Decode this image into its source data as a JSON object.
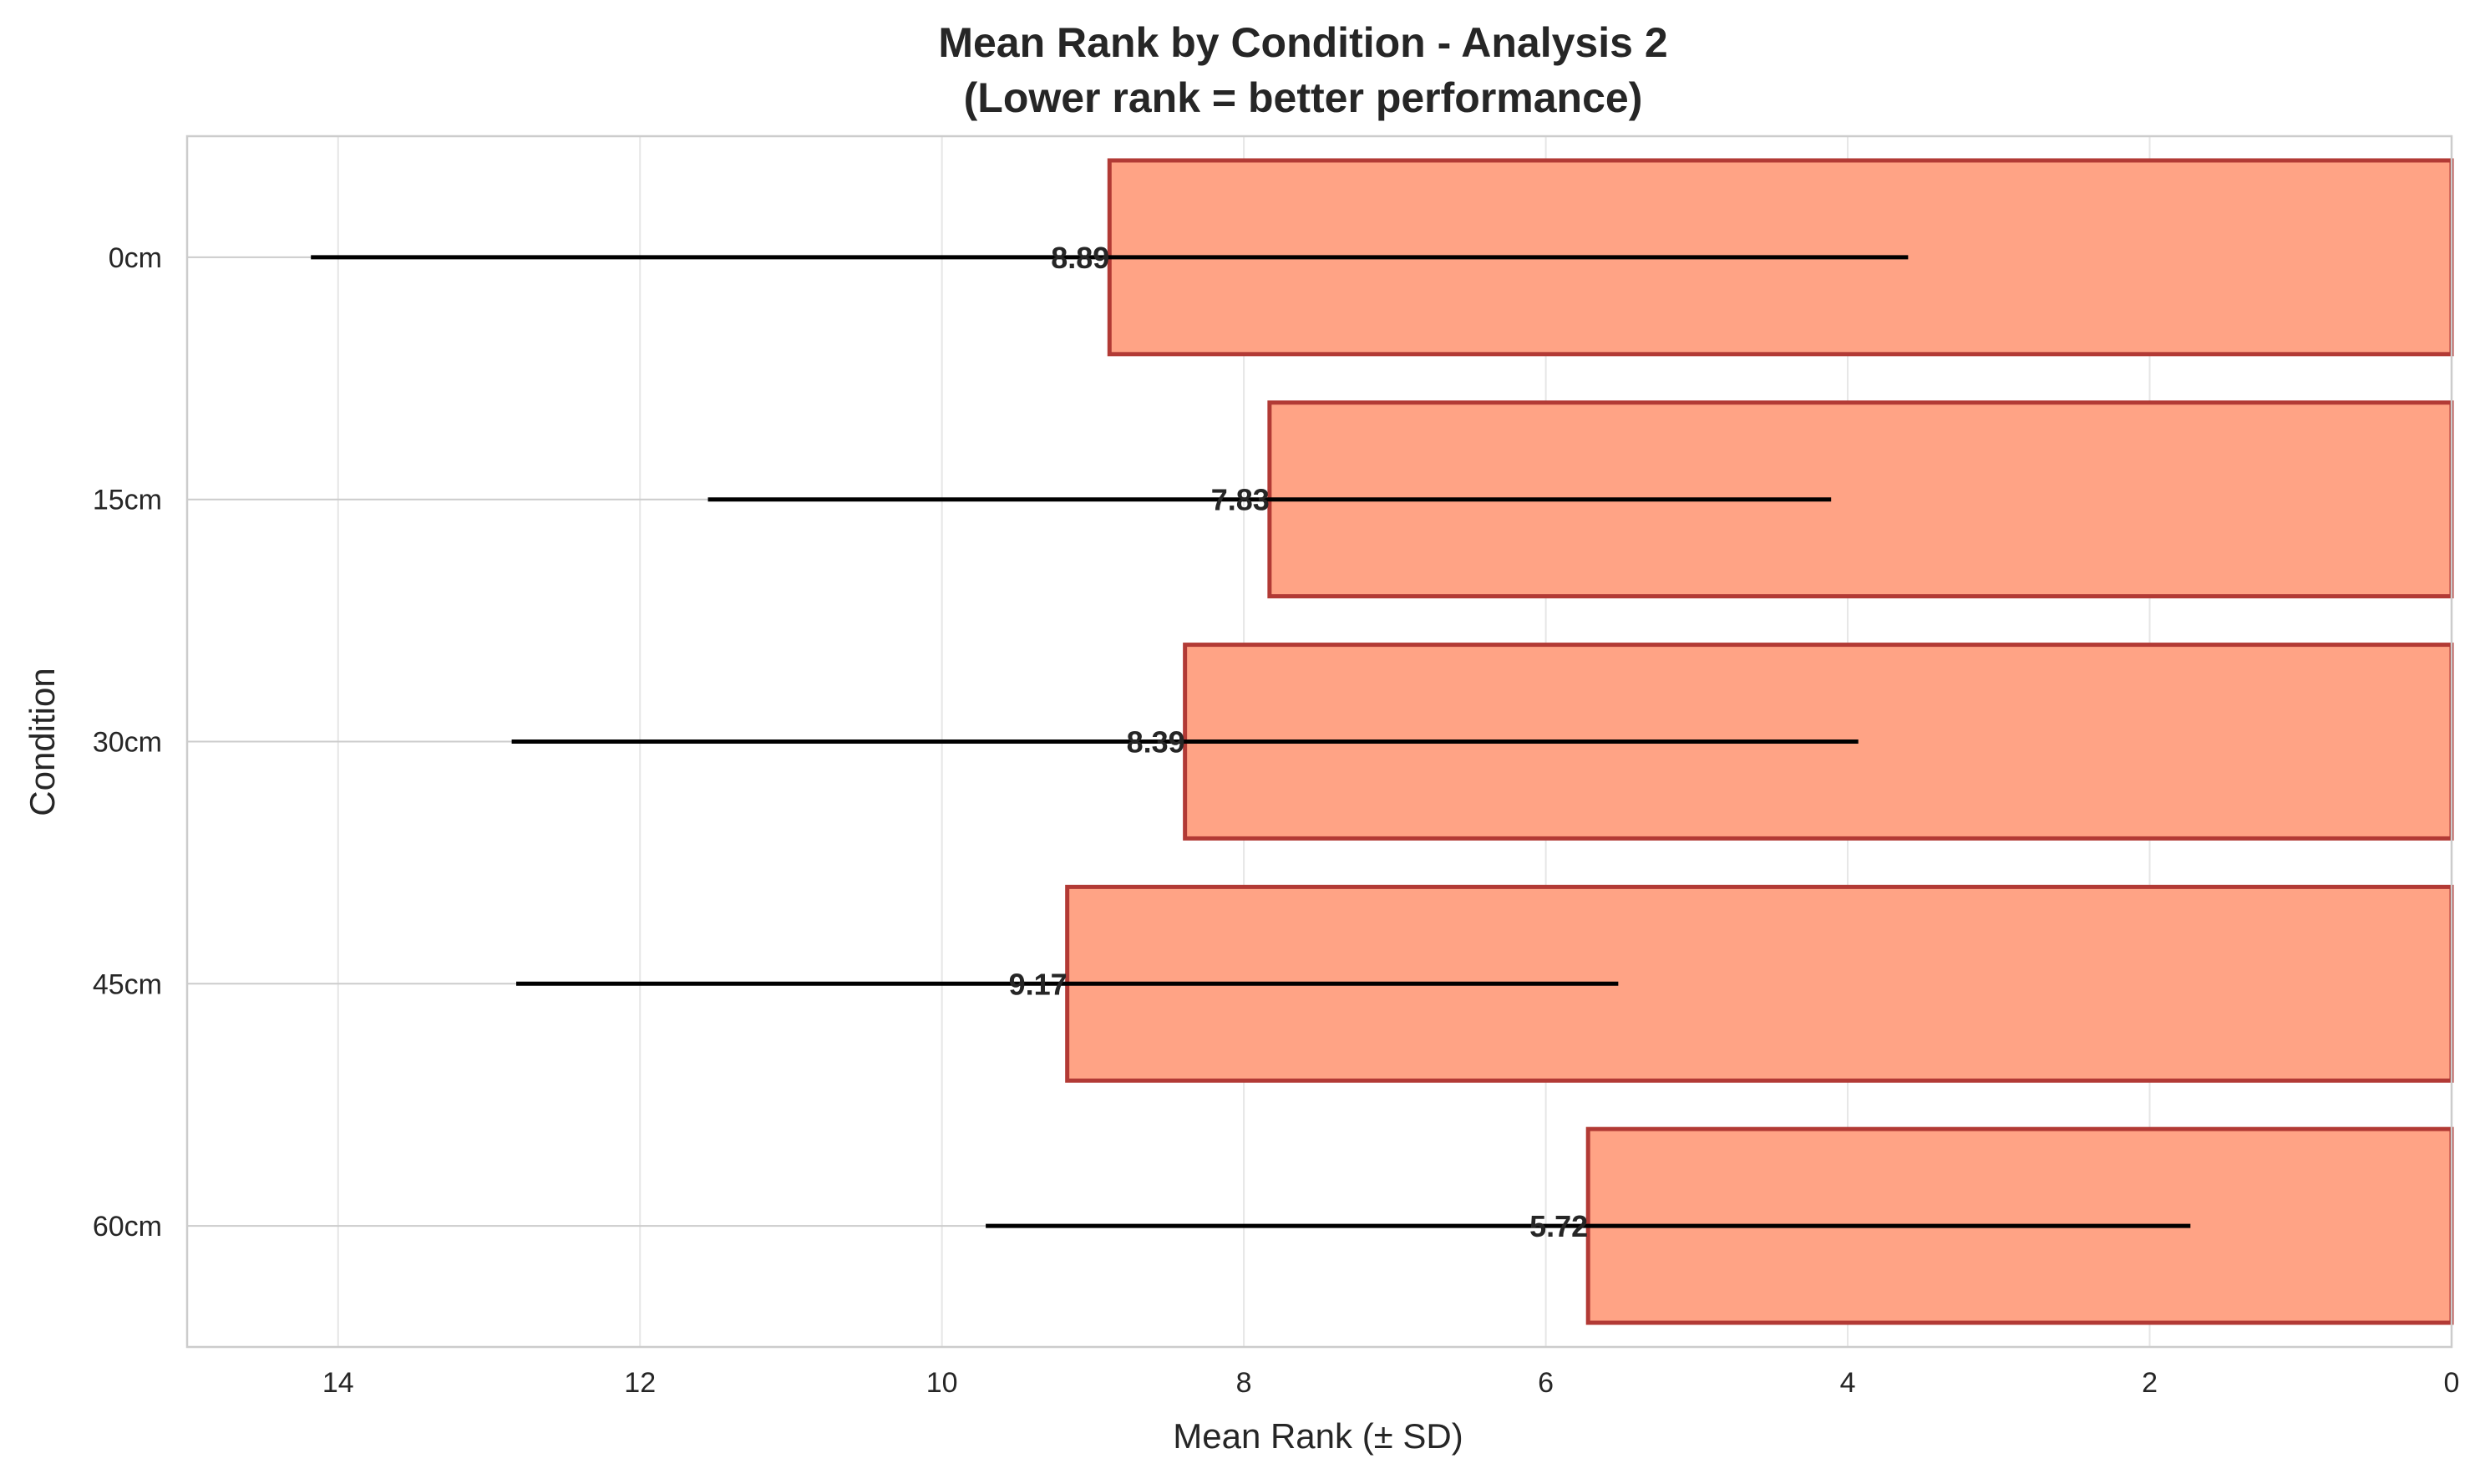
{
  "chart_data": {
    "type": "bar",
    "orientation": "horizontal",
    "title": "Mean Rank by Condition - Analysis 2",
    "subtitle": "(Lower rank = better performance)",
    "xlabel": "Mean Rank (± SD)",
    "ylabel": "Condition",
    "xlim": [
      15,
      0
    ],
    "x_inverted": true,
    "xticks": [
      14,
      12,
      10,
      8,
      6,
      4,
      2,
      0
    ],
    "grid": true,
    "categories": [
      "0cm",
      "15cm",
      "30cm",
      "45cm",
      "60cm"
    ],
    "series": [
      {
        "values": [
          8.89,
          7.83,
          8.39,
          9.17,
          5.72
        ],
        "sd": [
          5.29,
          3.72,
          4.46,
          3.65,
          3.99
        ]
      }
    ],
    "value_labels": [
      "8.89",
      "7.83",
      "8.39",
      "9.17",
      "5.72"
    ],
    "colors": {
      "bar_fill": "#ffa385",
      "bar_edge": "#b23a35",
      "error_bar": "#000000",
      "grid": "#e6e6e6",
      "axis": "#cccccc",
      "text": "#262626"
    }
  }
}
